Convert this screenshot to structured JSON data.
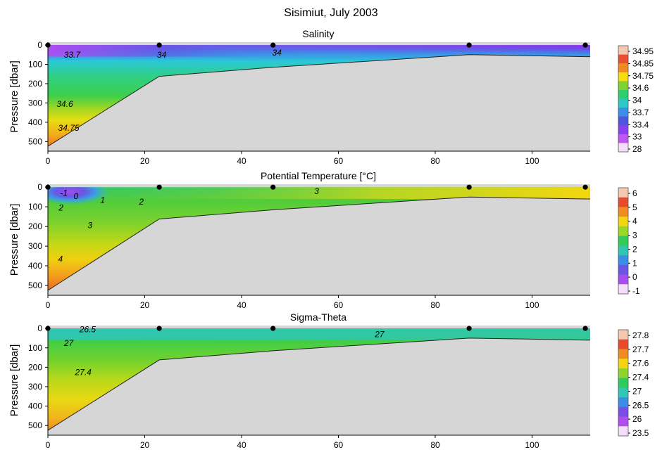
{
  "figure_title": "Sisimiut, July 2003",
  "chart_data": [
    {
      "type": "heatmap",
      "title": "Salinity",
      "xlabel": "",
      "ylabel": "Pressure [dbar]",
      "xlim": [
        0,
        112
      ],
      "ylim": [
        550,
        -15
      ],
      "xticks": [
        0,
        20,
        40,
        60,
        80,
        100
      ],
      "yticks": [
        0,
        100,
        200,
        300,
        400,
        500
      ],
      "stations_x": [
        0,
        23,
        46.5,
        87,
        111
      ],
      "bottom_profile": [
        [
          0,
          525
        ],
        [
          23,
          162
        ],
        [
          46.5,
          115
        ],
        [
          87,
          50
        ],
        [
          111,
          60
        ]
      ],
      "colorbar": {
        "labels": [
          "34.95",
          "34.85",
          "34.75",
          "34.6",
          "34",
          "33.7",
          "33.4",
          "33",
          "28"
        ],
        "colors": [
          "#f5c8b0",
          "#ea4f2e",
          "#f08a22",
          "#f5dd10",
          "#7fd232",
          "#2fce6d",
          "#2bc8c8",
          "#3b8ee8",
          "#4c58dc",
          "#8c3ff0",
          "#c055f2",
          "#f3ddf8"
        ]
      },
      "contour_labels": [
        {
          "text": "33.7",
          "x": 5,
          "y": 50
        },
        {
          "text": "34",
          "x": 23.5,
          "y": 50
        },
        {
          "text": "34",
          "x": 47.3,
          "y": 40
        },
        {
          "text": "34.6",
          "x": 3.5,
          "y": 305
        },
        {
          "text": "34.75",
          "x": 4.3,
          "y": 430
        }
      ]
    },
    {
      "type": "heatmap",
      "title": "Potential Temperature [°C]",
      "xlabel": "",
      "ylabel": "Pressure [dbar]",
      "xlim": [
        0,
        112
      ],
      "ylim": [
        550,
        -15
      ],
      "xticks": [
        0,
        20,
        40,
        60,
        80,
        100
      ],
      "yticks": [
        0,
        100,
        200,
        300,
        400,
        500
      ],
      "stations_x": [
        0,
        23,
        46.5,
        87,
        111
      ],
      "bottom_profile": [
        [
          0,
          525
        ],
        [
          23,
          162
        ],
        [
          46.5,
          115
        ],
        [
          87,
          50
        ],
        [
          111,
          60
        ]
      ],
      "colorbar": {
        "labels": [
          "6",
          "5",
          "4",
          "3",
          "2",
          "1",
          "0",
          "-1"
        ],
        "colors": [
          "#f5c8b0",
          "#e84a2c",
          "#f08c22",
          "#f5d411",
          "#9bd62a",
          "#34c958",
          "#2ec6b0",
          "#3b8ee8",
          "#6a55e6",
          "#a84bf0",
          "#f3ddf8"
        ]
      },
      "contour_labels": [
        {
          "text": "-1",
          "x": 3.3,
          "y": 30
        },
        {
          "text": "0",
          "x": 5.8,
          "y": 45
        },
        {
          "text": "1",
          "x": 11.3,
          "y": 65
        },
        {
          "text": "2",
          "x": 2.7,
          "y": 105
        },
        {
          "text": "2",
          "x": 19.3,
          "y": 75
        },
        {
          "text": "3",
          "x": 8.7,
          "y": 195
        },
        {
          "text": "3",
          "x": 55.5,
          "y": 20
        },
        {
          "text": "4",
          "x": 2.6,
          "y": 365
        }
      ]
    },
    {
      "type": "heatmap",
      "title": "Sigma-Theta",
      "xlabel": "",
      "ylabel": "Pressure [dbar]",
      "xlim": [
        0,
        112
      ],
      "ylim": [
        550,
        -15
      ],
      "xticks": [
        0,
        20,
        40,
        60,
        80,
        100
      ],
      "yticks": [
        0,
        100,
        200,
        300,
        400,
        500
      ],
      "stations_x": [
        0,
        23,
        46.5,
        87,
        111
      ],
      "bottom_profile": [
        [
          0,
          525
        ],
        [
          23,
          162
        ],
        [
          46.5,
          115
        ],
        [
          87,
          50
        ],
        [
          111,
          60
        ]
      ],
      "colorbar": {
        "labels": [
          "27.8",
          "27.7",
          "27.6",
          "27.4",
          "27",
          "26.5",
          "26",
          "23.5"
        ],
        "colors": [
          "#f5c8b0",
          "#e84a2c",
          "#f08c22",
          "#f5d411",
          "#8fd42c",
          "#2fcb5d",
          "#2ec7b8",
          "#3b8ee8",
          "#7a4ce8",
          "#b04cf0",
          "#f3ddf8"
        ]
      },
      "contour_labels": [
        {
          "text": "26.5",
          "x": 8.2,
          "y": 5
        },
        {
          "text": "27",
          "x": 4.3,
          "y": 75
        },
        {
          "text": "27",
          "x": 68.5,
          "y": 30
        },
        {
          "text": "27.4",
          "x": 7.3,
          "y": 225
        }
      ]
    }
  ]
}
